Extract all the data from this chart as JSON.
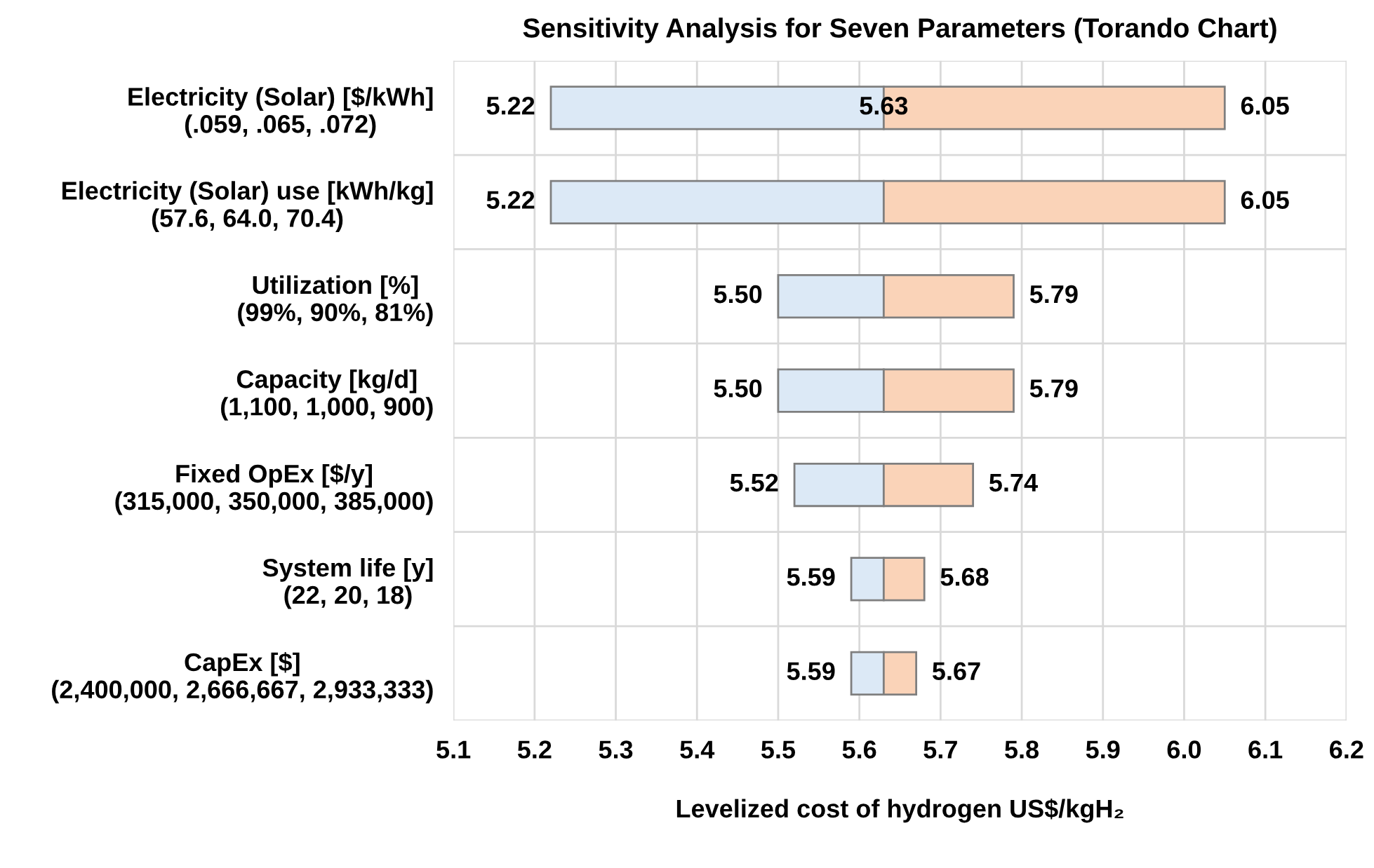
{
  "chart_data": {
    "type": "bar",
    "orientation": "horizontal",
    "stacked": true,
    "title": "Sensitivity Analysis for Seven Parameters (Torando Chart)",
    "xlabel": "Levelized cost of hydrogen US$/kgH₂",
    "categories": [
      "Electricity (Solar) [$/kWh]\n(.059, .065, .072)",
      "Electricity (Solar) use [kWh/kg]\n(57.6, 64.0, 70.4)",
      "Utilization [%]\n(99%, 90%, 81%)",
      "Capacity [kg/d]\n(1,100, 1,000, 900)",
      "Fixed OpEx [$/y]\n(315,000, 350,000, 385,000)",
      "System life [y]\n(22, 20, 18)",
      "CapEx [$]\n(2,400,000, 2,666,667, 2,933,333)"
    ],
    "series": [
      {
        "color": "#dce9f6",
        "base": [
          5.22,
          5.22,
          5.5,
          5.5,
          5.52,
          5.59,
          5.59
        ],
        "values": [
          0.41,
          0.41,
          0.13,
          0.13,
          0.11,
          0.04,
          0.04
        ]
      },
      {
        "color": "#fad3b8",
        "base": [
          5.63,
          5.63,
          5.63,
          5.63,
          5.63,
          5.63,
          5.63
        ],
        "values": [
          0.42,
          0.42,
          0.16,
          0.16,
          0.11,
          0.05,
          0.04
        ]
      }
    ],
    "annotations": [
      {
        "text": "5.22",
        "x": 5.22,
        "y": "Electricity (Solar) [$/kWh]\n(.059, .065, .072)"
      },
      {
        "text": "5.63",
        "x": 5.63,
        "y": "Electricity (Solar) [$/kWh]\n(.059, .065, .072)"
      },
      {
        "text": "6.05",
        "x": 6.05,
        "y": "Electricity (Solar) [$/kWh]\n(.059, .065, .072)"
      },
      {
        "text": "5.22",
        "x": 5.22,
        "y": "Electricity (Solar) use [kWh/kg]\n(57.6, 64.0, 70.4)"
      },
      {
        "text": "6.05",
        "x": 6.05,
        "y": "Electricity (Solar) use [kWh/kg]\n(57.6, 64.0, 70.4)"
      },
      {
        "text": "5.50",
        "x": 5.5,
        "y": "Utilization [%]\n(99%, 90%, 81%)"
      },
      {
        "text": "5.79",
        "x": 5.79,
        "y": "Utilization [%]\n(99%, 90%, 81%)"
      },
      {
        "text": "5.50",
        "x": 5.5,
        "y": "Capacity [kg/d]\n(1,100, 1,000, 900)"
      },
      {
        "text": "5.79",
        "x": 5.79,
        "y": "Capacity [kg/d]\n(1,100, 1,000, 900)"
      },
      {
        "text": "5.52",
        "x": 5.52,
        "y": "Fixed OpEx [$/y]\n(315,000, 350,000, 385,000)"
      },
      {
        "text": "5.74",
        "x": 5.74,
        "y": "Fixed OpEx [$/y]\n(315,000, 350,000, 385,000)"
      },
      {
        "text": "5.59",
        "x": 5.59,
        "y": "System life [y]\n(22, 20, 18)"
      },
      {
        "text": "5.68",
        "x": 5.68,
        "y": "System life [y]\n(22, 20, 18)"
      },
      {
        "text": "5.59",
        "x": 5.59,
        "y": "CapEx [$]\n(2,400,000, 2,666,667, 2,933,333)"
      },
      {
        "text": "5.67",
        "x": 5.67,
        "y": "CapEx [$]\n(2,400,000, 2,666,667, 2,933,333)"
      }
    ],
    "xlim": [
      5.1,
      6.2
    ],
    "xticks": [
      5.1,
      5.2,
      5.3,
      5.4,
      5.5,
      5.6,
      5.7,
      5.8,
      5.9,
      {
        "value": 6.0,
        "label": "6.0"
      },
      6.1,
      6.2
    ],
    "grid": true
  }
}
